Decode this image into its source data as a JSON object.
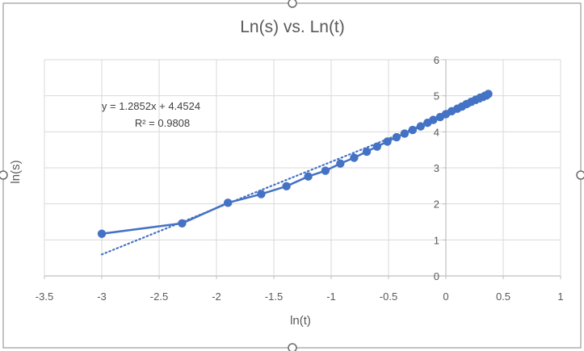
{
  "chart_data": {
    "type": "scatter",
    "title": "Ln(s) vs. Ln(t)",
    "xlabel": "ln(t)",
    "ylabel": "ln(s)",
    "xlim": [
      -3.5,
      1
    ],
    "ylim": [
      0,
      6
    ],
    "x_ticks": [
      "-3.5",
      "-3",
      "-2.5",
      "-2",
      "-1.5",
      "-1",
      "-0.5",
      "0",
      "0.5",
      "1"
    ],
    "y_ticks": [
      "0",
      "1",
      "2",
      "3",
      "4",
      "5",
      "6"
    ],
    "grid": true,
    "legend": "none",
    "series": [
      {
        "points": [
          {
            "x": -3.0,
            "y": 1.17
          },
          {
            "x": -2.3,
            "y": 1.46
          },
          {
            "x": -1.9,
            "y": 2.03
          },
          {
            "x": -1.61,
            "y": 2.27
          },
          {
            "x": -1.39,
            "y": 2.49
          },
          {
            "x": -1.2,
            "y": 2.76
          },
          {
            "x": -1.05,
            "y": 2.92
          },
          {
            "x": -0.92,
            "y": 3.12
          },
          {
            "x": -0.8,
            "y": 3.28
          },
          {
            "x": -0.69,
            "y": 3.45
          },
          {
            "x": -0.6,
            "y": 3.59
          },
          {
            "x": -0.51,
            "y": 3.73
          },
          {
            "x": -0.43,
            "y": 3.85
          },
          {
            "x": -0.36,
            "y": 3.95
          },
          {
            "x": -0.29,
            "y": 4.05
          },
          {
            "x": -0.22,
            "y": 4.15
          },
          {
            "x": -0.16,
            "y": 4.25
          },
          {
            "x": -0.11,
            "y": 4.33
          },
          {
            "x": -0.05,
            "y": 4.41
          },
          {
            "x": 0.0,
            "y": 4.49
          },
          {
            "x": 0.05,
            "y": 4.57
          },
          {
            "x": 0.1,
            "y": 4.64
          },
          {
            "x": 0.14,
            "y": 4.7
          },
          {
            "x": 0.18,
            "y": 4.77
          },
          {
            "x": 0.22,
            "y": 4.83
          },
          {
            "x": 0.26,
            "y": 4.89
          },
          {
            "x": 0.3,
            "y": 4.95
          },
          {
            "x": 0.34,
            "y": 5.0
          },
          {
            "x": 0.37,
            "y": 5.05
          }
        ]
      }
    ],
    "trendline": {
      "slope": 1.2852,
      "intercept": 4.4524,
      "x_range": [
        -3.0,
        0.37
      ],
      "style": "dotted",
      "equation": "y = 1.2852x + 4.4524",
      "r_squared": "R² = 0.9808"
    },
    "colors": {
      "series": "#4472C4",
      "grid": "#D9D9D9",
      "axis": "#BFBFBF",
      "text": "#595959"
    }
  }
}
